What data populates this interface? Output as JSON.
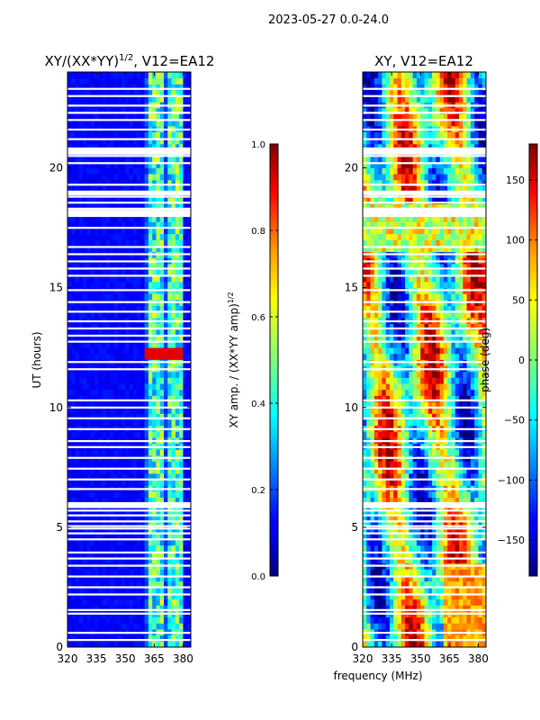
{
  "suptitle": "2023-05-27 0.0-24.0",
  "chart_data": [
    {
      "type": "heatmap",
      "title": "XY/(XX*YY)",
      "title_exp": "1/2",
      "title_suffix": ", V12=EA12",
      "xlabel": "",
      "ylabel": "UT (hours)",
      "xlim": [
        320,
        384
      ],
      "ylim": [
        0,
        24
      ],
      "xticks": [
        "320",
        "335",
        "350",
        "365",
        "380"
      ],
      "xtick_values": [
        320,
        335,
        350,
        365,
        380
      ],
      "yticks": [
        "0",
        "5",
        "10",
        "15",
        "20"
      ],
      "ytick_values": [
        0,
        5,
        10,
        15,
        20
      ],
      "colorbar": {
        "label": "XY amp. / (XX*YY amp)",
        "label_exp": "1/2",
        "range": [
          0.0,
          1.0
        ],
        "ticks": [
          "0.0",
          "0.2",
          "0.4",
          "0.6",
          "0.8",
          "1.0"
        ],
        "tick_values": [
          0.0,
          0.2,
          0.4,
          0.6,
          0.8,
          1.0
        ],
        "colormap": "jet"
      },
      "description_values": {
        "background_amplitude": 0.1,
        "band_start_mhz": 361,
        "band_end_mhz": 380,
        "band_amplitude_range": [
          0.25,
          0.6
        ],
        "high_patch_hours": [
          12.0,
          12.6
        ],
        "high_patch_amplitude": 0.9
      }
    },
    {
      "type": "heatmap",
      "title": "XY, V12=EA12",
      "xlabel": "frequency (MHz)",
      "ylabel": "",
      "xlim": [
        320,
        384
      ],
      "ylim": [
        0,
        24
      ],
      "xticks": [
        "320",
        "335",
        "350",
        "365",
        "380"
      ],
      "xtick_values": [
        320,
        335,
        350,
        365,
        380
      ],
      "yticks": [
        "0",
        "5",
        "10",
        "15",
        "20"
      ],
      "ytick_values": [
        0,
        5,
        10,
        15,
        20
      ],
      "colorbar": {
        "label": "phase (deg)",
        "range": [
          -180,
          180
        ],
        "ticks": [
          "−150",
          "−100",
          "−50",
          "0",
          "50",
          "100",
          "150"
        ],
        "tick_values": [
          -150,
          -100,
          -50,
          0,
          50,
          100,
          150
        ],
        "colormap": "jet"
      }
    }
  ],
  "flagged_gap_hours": [
    0.3,
    0.6,
    1.4,
    1.55,
    2.2,
    2.5,
    2.95,
    3.4,
    3.7,
    3.95,
    4.5,
    4.75,
    4.95,
    5.05,
    5.25,
    5.5,
    5.7,
    5.85,
    6.6,
    7.0,
    7.45,
    7.9,
    8.35,
    8.6,
    9.1,
    9.55,
    10.0,
    10.3,
    11.6,
    11.9,
    12.75,
    13.0,
    13.3,
    13.6,
    14.0,
    14.4,
    14.9,
    15.5,
    15.8,
    16.1,
    16.4,
    16.7,
    17.5,
    18.3,
    18.55,
    18.8,
    19.3,
    20.2,
    20.5,
    20.8,
    21.2,
    21.6,
    22.0,
    22.3,
    22.6,
    23.0,
    23.3
  ],
  "flagged_wide_gaps": [
    [
      5.8,
      6.05
    ],
    [
      17.95,
      18.25
    ],
    [
      18.85,
      19.05
    ],
    [
      20.55,
      20.85
    ]
  ]
}
